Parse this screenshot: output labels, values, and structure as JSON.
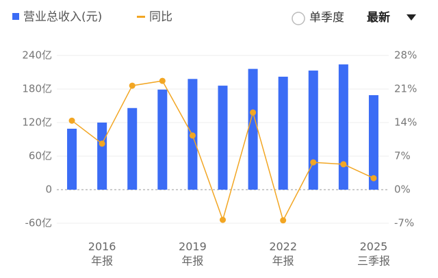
{
  "chart_data": {
    "type": "bar-line",
    "legend": {
      "bar": "营业总收入(元)",
      "line": "同比"
    },
    "controls": {
      "radio": "单季度",
      "dropdown": "最新"
    },
    "categories": [
      null,
      "2016",
      null,
      null,
      "2019",
      null,
      null,
      "2022",
      null,
      null,
      "2025"
    ],
    "category_sublabels": [
      null,
      "年报",
      null,
      null,
      "年报",
      null,
      null,
      "年报",
      null,
      null,
      "三季报"
    ],
    "series": [
      {
        "name": "营业总收入(元)",
        "type": "bar",
        "color": "#3b6cf5",
        "values": [
          109,
          120,
          146,
          179,
          198,
          186,
          216,
          202,
          213,
          224,
          169
        ]
      },
      {
        "name": "同比",
        "type": "line",
        "axis": "y2",
        "color": "#f2a623",
        "values": [
          14.4,
          9.6,
          21.7,
          22.7,
          11.3,
          -6.3,
          16.1,
          -6.4,
          5.7,
          5.3,
          2.4
        ]
      }
    ],
    "ylim": [
      -60,
      240
    ],
    "yticks": [
      {
        "value": -60,
        "label": "-60亿"
      },
      0,
      {
        "value": 60,
        "label": "60亿"
      },
      {
        "value": 120,
        "label": "120亿"
      },
      {
        "value": 180,
        "label": "180亿"
      },
      {
        "value": 240,
        "label": "240亿"
      }
    ],
    "y2lim": [
      -7,
      28
    ],
    "y2ticks": [
      {
        "value": -7,
        "label": "-7%"
      },
      {
        "value": 0,
        "label": "0%"
      },
      {
        "value": 7,
        "label": "7%"
      },
      {
        "value": 14,
        "label": "14%"
      },
      {
        "value": 21,
        "label": "21%"
      },
      {
        "value": 28,
        "label": "28%"
      }
    ],
    "grid": true
  }
}
